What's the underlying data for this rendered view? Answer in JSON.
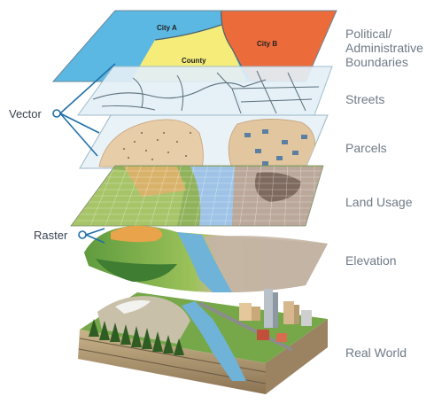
{
  "layers": [
    {
      "label_lines": [
        "Political/",
        "Administrative",
        "Boundaries"
      ]
    },
    {
      "label_lines": [
        "Streets"
      ]
    },
    {
      "label_lines": [
        "Parcels"
      ]
    },
    {
      "label_lines": [
        "Land Usage"
      ]
    },
    {
      "label_lines": [
        "Elevation"
      ]
    },
    {
      "label_lines": [
        "Real World"
      ]
    }
  ],
  "groups": {
    "vector": "Vector",
    "raster": "Raster"
  },
  "map_labels": {
    "city_a": "City A",
    "city_b": "City B",
    "county": "County"
  },
  "colors": {
    "city_a": "#5bb8e3",
    "city_b": "#ec6b3a",
    "county": "#f5ec7a",
    "leader_line": "#1f6fa8",
    "label_text": "#6e7a86"
  }
}
